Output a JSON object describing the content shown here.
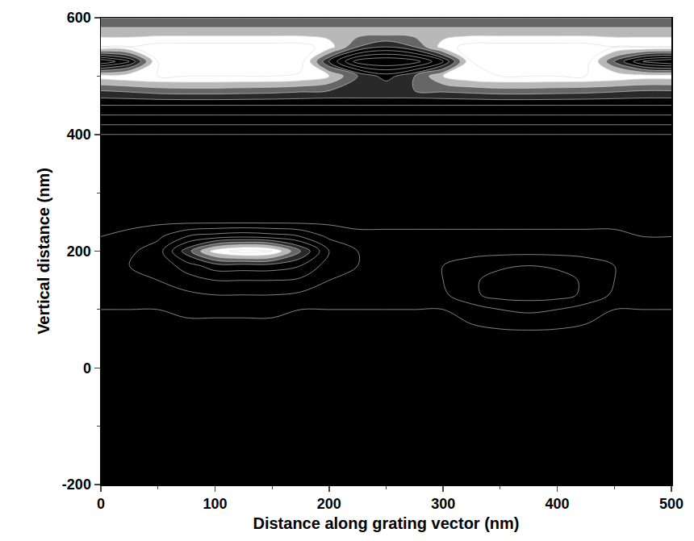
{
  "chart_data": {
    "type": "contour",
    "x_label": "Distance along grating vector (nm)",
    "y_label": "Vertical distance (nm)",
    "xlim": [
      0,
      500
    ],
    "xticks": [
      0,
      100,
      200,
      300,
      400,
      500
    ],
    "ylim": [
      -200,
      600
    ],
    "yticks": [
      -200,
      0,
      200,
      400,
      600
    ],
    "zlim": [
      0,
      1
    ],
    "x": [
      0,
      25,
      50,
      75,
      100,
      125,
      150,
      175,
      200,
      225,
      250,
      275,
      300,
      325,
      350,
      375,
      400,
      425,
      450,
      475,
      500
    ],
    "y": [
      -200,
      -100,
      0,
      50,
      100,
      125,
      150,
      175,
      200,
      225,
      250,
      300,
      350,
      400,
      425,
      450,
      475,
      500,
      525,
      550,
      575,
      600
    ],
    "z": [
      [
        0.02,
        0.02,
        0.02,
        0.02,
        0.02,
        0.02,
        0.02,
        0.02,
        0.02,
        0.02,
        0.02,
        0.02,
        0.02,
        0.02,
        0.02,
        0.02,
        0.02,
        0.02,
        0.02,
        0.02,
        0.02
      ],
      [
        0.03,
        0.03,
        0.03,
        0.03,
        0.03,
        0.03,
        0.03,
        0.03,
        0.03,
        0.03,
        0.03,
        0.03,
        0.03,
        0.03,
        0.03,
        0.03,
        0.03,
        0.03,
        0.03,
        0.03,
        0.03
      ],
      [
        0.03,
        0.03,
        0.03,
        0.03,
        0.03,
        0.03,
        0.03,
        0.03,
        0.03,
        0.03,
        0.03,
        0.03,
        0.03,
        0.03,
        0.03,
        0.03,
        0.03,
        0.03,
        0.03,
        0.03,
        0.03
      ],
      [
        0.05,
        0.05,
        0.05,
        0.05,
        0.05,
        0.05,
        0.05,
        0.05,
        0.05,
        0.05,
        0.05,
        0.05,
        0.05,
        0.05,
        0.05,
        0.05,
        0.05,
        0.05,
        0.05,
        0.05,
        0.05
      ],
      [
        0.1,
        0.1,
        0.1,
        0.12,
        0.12,
        0.12,
        0.12,
        0.1,
        0.1,
        0.1,
        0.1,
        0.1,
        0.1,
        0.15,
        0.2,
        0.22,
        0.2,
        0.15,
        0.1,
        0.1,
        0.1
      ],
      [
        0.15,
        0.15,
        0.15,
        0.18,
        0.2,
        0.2,
        0.2,
        0.18,
        0.15,
        0.15,
        0.15,
        0.15,
        0.18,
        0.28,
        0.34,
        0.35,
        0.34,
        0.28,
        0.18,
        0.15,
        0.15
      ],
      [
        0.18,
        0.18,
        0.2,
        0.25,
        0.3,
        0.3,
        0.3,
        0.28,
        0.2,
        0.18,
        0.17,
        0.17,
        0.2,
        0.28,
        0.35,
        0.36,
        0.35,
        0.28,
        0.2,
        0.18,
        0.18
      ],
      [
        0.2,
        0.2,
        0.22,
        0.35,
        0.45,
        0.45,
        0.45,
        0.4,
        0.25,
        0.2,
        0.2,
        0.2,
        0.2,
        0.24,
        0.28,
        0.3,
        0.28,
        0.24,
        0.2,
        0.2,
        0.2
      ],
      [
        0.15,
        0.18,
        0.25,
        0.55,
        0.85,
        0.95,
        0.9,
        0.6,
        0.3,
        0.2,
        0.18,
        0.17,
        0.17,
        0.17,
        0.17,
        0.17,
        0.17,
        0.17,
        0.17,
        0.16,
        0.15
      ],
      [
        0.1,
        0.12,
        0.18,
        0.3,
        0.35,
        0.38,
        0.35,
        0.3,
        0.18,
        0.12,
        0.12,
        0.12,
        0.12,
        0.12,
        0.12,
        0.12,
        0.12,
        0.12,
        0.12,
        0.1,
        0.1
      ],
      [
        0.08,
        0.08,
        0.08,
        0.08,
        0.08,
        0.08,
        0.08,
        0.08,
        0.08,
        0.08,
        0.08,
        0.08,
        0.08,
        0.08,
        0.08,
        0.08,
        0.08,
        0.08,
        0.08,
        0.08,
        0.08
      ],
      [
        0.05,
        0.05,
        0.05,
        0.05,
        0.05,
        0.05,
        0.05,
        0.05,
        0.05,
        0.05,
        0.05,
        0.05,
        0.05,
        0.05,
        0.05,
        0.05,
        0.05,
        0.05,
        0.05,
        0.05,
        0.05
      ],
      [
        0.05,
        0.05,
        0.05,
        0.05,
        0.05,
        0.05,
        0.05,
        0.05,
        0.05,
        0.05,
        0.05,
        0.05,
        0.05,
        0.05,
        0.05,
        0.05,
        0.05,
        0.05,
        0.05,
        0.05,
        0.05
      ],
      [
        0.1,
        0.1,
        0.1,
        0.1,
        0.1,
        0.1,
        0.1,
        0.1,
        0.1,
        0.1,
        0.1,
        0.1,
        0.1,
        0.1,
        0.1,
        0.1,
        0.1,
        0.1,
        0.1,
        0.1,
        0.1
      ],
      [
        0.25,
        0.25,
        0.25,
        0.25,
        0.25,
        0.25,
        0.25,
        0.25,
        0.25,
        0.25,
        0.25,
        0.25,
        0.25,
        0.25,
        0.25,
        0.25,
        0.25,
        0.25,
        0.25,
        0.25,
        0.25
      ],
      [
        0.4,
        0.4,
        0.4,
        0.4,
        0.4,
        0.4,
        0.4,
        0.4,
        0.4,
        0.4,
        0.4,
        0.4,
        0.4,
        0.4,
        0.4,
        0.4,
        0.4,
        0.4,
        0.4,
        0.4,
        0.4
      ],
      [
        0.6,
        0.62,
        0.65,
        0.66,
        0.66,
        0.65,
        0.64,
        0.62,
        0.6,
        0.6,
        0.6,
        0.6,
        0.62,
        0.64,
        0.66,
        0.66,
        0.65,
        0.64,
        0.62,
        0.6,
        0.6
      ],
      [
        0.85,
        0.88,
        0.9,
        0.9,
        0.9,
        0.9,
        0.9,
        0.88,
        0.8,
        0.6,
        0.45,
        0.6,
        0.8,
        0.88,
        0.9,
        0.9,
        0.9,
        0.9,
        0.88,
        0.85,
        0.85
      ],
      [
        0.2,
        0.4,
        0.9,
        0.95,
        0.95,
        0.95,
        0.95,
        0.95,
        0.5,
        0.15,
        0.1,
        0.15,
        0.4,
        0.9,
        0.95,
        0.95,
        0.95,
        0.95,
        0.6,
        0.3,
        0.2
      ],
      [
        0.9,
        0.9,
        0.95,
        0.95,
        0.95,
        0.95,
        0.95,
        0.95,
        0.85,
        0.6,
        0.5,
        0.6,
        0.85,
        0.95,
        0.95,
        0.95,
        0.95,
        0.95,
        0.9,
        0.9,
        0.9
      ],
      [
        0.75,
        0.75,
        0.75,
        0.75,
        0.75,
        0.75,
        0.75,
        0.75,
        0.75,
        0.75,
        0.75,
        0.75,
        0.75,
        0.75,
        0.75,
        0.75,
        0.75,
        0.75,
        0.75,
        0.75,
        0.75
      ],
      [
        0.6,
        0.6,
        0.6,
        0.6,
        0.6,
        0.6,
        0.6,
        0.6,
        0.6,
        0.6,
        0.6,
        0.6,
        0.6,
        0.6,
        0.6,
        0.6,
        0.6,
        0.6,
        0.6,
        0.6,
        0.6
      ]
    ]
  }
}
